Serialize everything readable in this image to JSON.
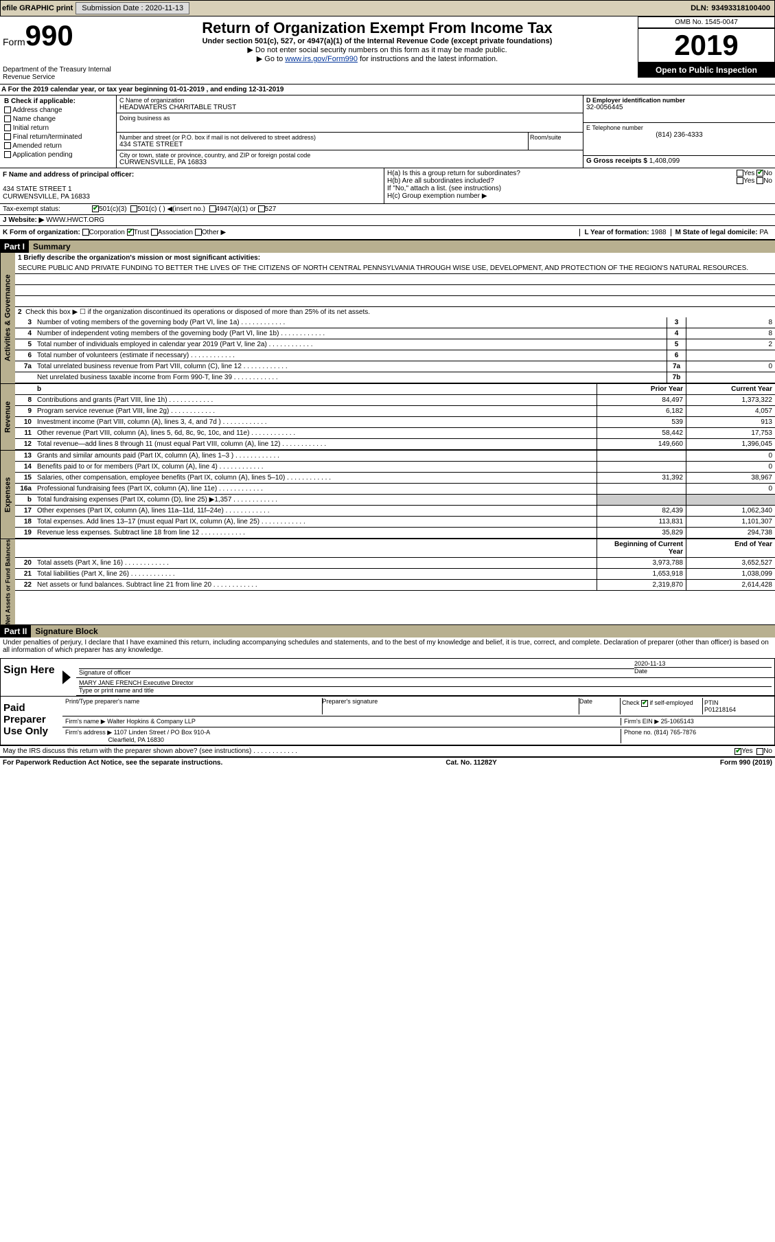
{
  "topbar": {
    "efile": "efile GRAPHIC print",
    "sub_label": "Submission Date :",
    "sub_date": "2020-11-13",
    "dln_label": "DLN:",
    "dln": "93493318100400"
  },
  "header": {
    "form_label": "Form",
    "form_no": "990",
    "dept": "Department of the Treasury\nInternal Revenue Service",
    "title": "Return of Organization Exempt From Income Tax",
    "subtitle": "Under section 501(c), 527, or 4947(a)(1) of the Internal Revenue Code (except private foundations)",
    "inst1": "▶ Do not enter social security numbers on this form as it may be made public.",
    "inst2_pre": "▶ Go to ",
    "inst2_link": "www.irs.gov/Form990",
    "inst2_post": " for instructions and the latest information.",
    "omb": "OMB No. 1545-0047",
    "year": "2019",
    "open": "Open to Public Inspection"
  },
  "section_a": "A For the 2019 calendar year, or tax year beginning 01-01-2019    , and ending 12-31-2019",
  "block_b": {
    "label": "B Check if applicable:",
    "items": [
      "Address change",
      "Name change",
      "Initial return",
      "Final return/terminated",
      "Amended return",
      "Application pending"
    ]
  },
  "block_c": {
    "name_label": "C Name of organization",
    "name": "HEADWATERS CHARITABLE TRUST",
    "dba_label": "Doing business as",
    "addr_label": "Number and street (or P.O. box if mail is not delivered to street address)",
    "addr": "434 STATE STREET",
    "room_label": "Room/suite",
    "city_label": "City or town, state or province, country, and ZIP or foreign postal code",
    "city": "CURWENSVILLE, PA  16833"
  },
  "block_d": {
    "label": "D Employer identification number",
    "value": "32-0056445"
  },
  "block_e": {
    "label": "E Telephone number",
    "value": "(814) 236-4333"
  },
  "block_g": {
    "label": "G Gross receipts $",
    "value": "1,408,099"
  },
  "block_f": {
    "label": "F Name and address of principal officer:",
    "addr1": "434 STATE STREET 1",
    "addr2": "CURWENSVILLE, PA  16833"
  },
  "block_h": {
    "a": "H(a)  Is this a group return for subordinates?",
    "b": "H(b)  Are all subordinates included?",
    "b_note": "If \"No,\" attach a list. (see instructions)",
    "c": "H(c)  Group exemption number ▶",
    "yes": "Yes",
    "no": "No"
  },
  "tax_status": {
    "label": "Tax-exempt status:",
    "opts": [
      "501(c)(3)",
      "501(c) (  ) ◀(insert no.)",
      "4947(a)(1) or",
      "527"
    ]
  },
  "block_j": {
    "label": "J   Website: ▶",
    "value": "WWW.HWCT.ORG"
  },
  "block_k": {
    "label": "K Form of organization:",
    "opts": [
      "Corporation",
      "Trust",
      "Association",
      "Other ▶"
    ]
  },
  "block_l": {
    "label": "L Year of formation:",
    "value": "1988"
  },
  "block_m": {
    "label": "M State of legal domicile:",
    "value": "PA"
  },
  "part1": {
    "header": "Part I",
    "title": "Summary"
  },
  "summary": {
    "line1_label": "1  Briefly describe the organization's mission or most significant activities:",
    "mission": "SECURE PUBLIC AND PRIVATE FUNDING TO BETTER THE LIVES OF THE CITIZENS OF NORTH CENTRAL PENNSYLVANIA THROUGH WISE USE, DEVELOPMENT, AND PROTECTION OF THE REGION'S NATURAL RESOURCES.",
    "line2": "Check this box ▶ ☐ if the organization discontinued its operations or disposed of more than 25% of its net assets.",
    "sidebars": {
      "ag": "Activities & Governance",
      "rev": "Revenue",
      "exp": "Expenses",
      "net": "Net Assets or Fund Balances"
    },
    "col_prior": "Prior Year",
    "col_current": "Current Year",
    "col_begin": "Beginning of Current Year",
    "col_end": "End of Year",
    "lines_ag": [
      {
        "n": "3",
        "d": "Number of voting members of the governing body (Part VI, line 1a)",
        "box": "3",
        "v": "8"
      },
      {
        "n": "4",
        "d": "Number of independent voting members of the governing body (Part VI, line 1b)",
        "box": "4",
        "v": "8"
      },
      {
        "n": "5",
        "d": "Total number of individuals employed in calendar year 2019 (Part V, line 2a)",
        "box": "5",
        "v": "2"
      },
      {
        "n": "6",
        "d": "Total number of volunteers (estimate if necessary)",
        "box": "6",
        "v": ""
      },
      {
        "n": "7a",
        "d": "Total unrelated business revenue from Part VIII, column (C), line 12",
        "box": "7a",
        "v": "0"
      },
      {
        "n": "",
        "d": "Net unrelated business taxable income from Form 990-T, line 39",
        "box": "7b",
        "v": ""
      }
    ],
    "lines_rev": [
      {
        "n": "8",
        "d": "Contributions and grants (Part VIII, line 1h)",
        "p": "84,497",
        "c": "1,373,322"
      },
      {
        "n": "9",
        "d": "Program service revenue (Part VIII, line 2g)",
        "p": "6,182",
        "c": "4,057"
      },
      {
        "n": "10",
        "d": "Investment income (Part VIII, column (A), lines 3, 4, and 7d )",
        "p": "539",
        "c": "913"
      },
      {
        "n": "11",
        "d": "Other revenue (Part VIII, column (A), lines 5, 6d, 8c, 9c, 10c, and 11e)",
        "p": "58,442",
        "c": "17,753"
      },
      {
        "n": "12",
        "d": "Total revenue—add lines 8 through 11 (must equal Part VIII, column (A), line 12)",
        "p": "149,660",
        "c": "1,396,045"
      }
    ],
    "lines_exp": [
      {
        "n": "13",
        "d": "Grants and similar amounts paid (Part IX, column (A), lines 1–3 )",
        "p": "",
        "c": "0"
      },
      {
        "n": "14",
        "d": "Benefits paid to or for members (Part IX, column (A), line 4)",
        "p": "",
        "c": "0"
      },
      {
        "n": "15",
        "d": "Salaries, other compensation, employee benefits (Part IX, column (A), lines 5–10)",
        "p": "31,392",
        "c": "38,967"
      },
      {
        "n": "16a",
        "d": "Professional fundraising fees (Part IX, column (A), line 11e)",
        "p": "",
        "c": "0"
      },
      {
        "n": "b",
        "d": "Total fundraising expenses (Part IX, column (D), line 25) ▶1,357",
        "p": "shade",
        "c": "shade"
      },
      {
        "n": "17",
        "d": "Other expenses (Part IX, column (A), lines 11a–11d, 11f–24e)",
        "p": "82,439",
        "c": "1,062,340"
      },
      {
        "n": "18",
        "d": "Total expenses. Add lines 13–17 (must equal Part IX, column (A), line 25)",
        "p": "113,831",
        "c": "1,101,307"
      },
      {
        "n": "19",
        "d": "Revenue less expenses. Subtract line 18 from line 12",
        "p": "35,829",
        "c": "294,738"
      }
    ],
    "lines_net": [
      {
        "n": "20",
        "d": "Total assets (Part X, line 16)",
        "p": "3,973,788",
        "c": "3,652,527"
      },
      {
        "n": "21",
        "d": "Total liabilities (Part X, line 26)",
        "p": "1,653,918",
        "c": "1,038,099"
      },
      {
        "n": "22",
        "d": "Net assets or fund balances. Subtract line 21 from line 20",
        "p": "2,319,870",
        "c": "2,614,428"
      }
    ]
  },
  "part2": {
    "header": "Part II",
    "title": "Signature Block"
  },
  "sig": {
    "penalty": "Under penalties of perjury, I declare that I have examined this return, including accompanying schedules and statements, and to the best of my knowledge and belief, it is true, correct, and complete. Declaration of preparer (other than officer) is based on all information of which preparer has any knowledge.",
    "sign_here": "Sign Here",
    "sig_officer": "Signature of officer",
    "date_label": "Date",
    "date": "2020-11-13",
    "name_title": "MARY JANE FRENCH  Executive Director",
    "type_label": "Type or print name and title",
    "paid": "Paid Preparer Use Only",
    "prep_name_label": "Print/Type preparer's name",
    "prep_sig_label": "Preparer's signature",
    "check_label": "Check",
    "self_emp": "if self-employed",
    "ptin_label": "PTIN",
    "ptin": "P01218164",
    "firm_name_label": "Firm's name    ▶",
    "firm_name": "Walter Hopkins & Company LLP",
    "firm_ein_label": "Firm's EIN ▶",
    "firm_ein": "25-1065143",
    "firm_addr_label": "Firm's address ▶",
    "firm_addr1": "1107 Linden Street / PO Box 910-A",
    "firm_addr2": "Clearfield, PA  16830",
    "phone_label": "Phone no.",
    "phone": "(814) 765-7876",
    "discuss": "May the IRS discuss this return with the preparer shown above? (see instructions)",
    "yes": "Yes",
    "no": "No"
  },
  "footer": {
    "left": "For Paperwork Reduction Act Notice, see the separate instructions.",
    "center": "Cat. No. 11282Y",
    "right": "Form 990 (2019)"
  }
}
